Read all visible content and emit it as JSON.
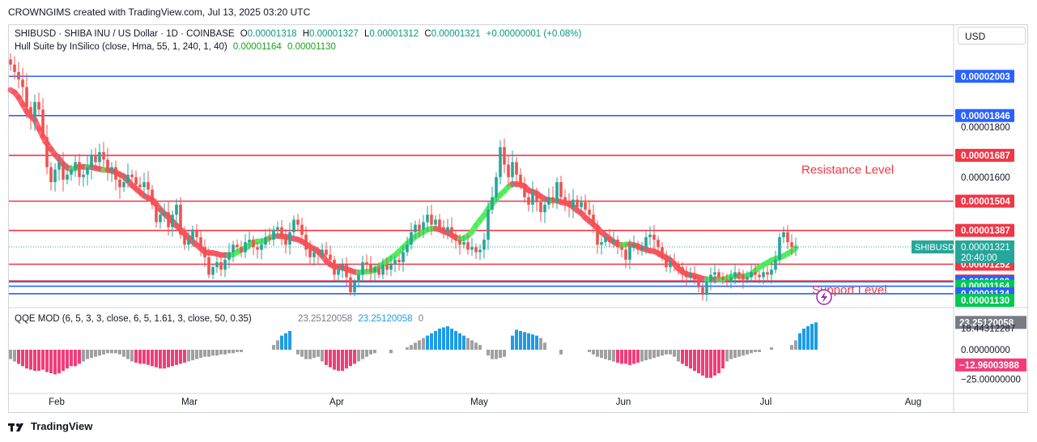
{
  "header": {
    "attribution": "CROWNGIMS created with TradingView.com, Jul 13, 2025 03:20 UTC",
    "currency_button": "USD"
  },
  "legend": {
    "symbol": "SHIBUSD · SHIBA INU / US Dollar · 1D · COINBASE",
    "o_label": "O",
    "o_value": "0.00001318",
    "h_label": "H",
    "h_value": "0.00001327",
    "l_label": "L",
    "l_value": "0.00001312",
    "c_label": "C",
    "c_value": "0.00001321",
    "change": "+0.00000001 (+0.08%)",
    "hull_title": "Hull Suite by InSilico (close, Hma, 55, 1, 240, 1, 40)",
    "hull_v1": "0.00001164",
    "hull_v2": "0.00001130",
    "qqe_title": "QQE MOD (6, 5, 3, 3, close, 6, 5, 1.61, 3, close, 50, 0.35)",
    "qqe_v1": "23.25120058",
    "qqe_v2": "23.25120058",
    "qqe_v3": "0"
  },
  "footer": {
    "brand": "TradingView"
  },
  "colors": {
    "up": "#26a69a",
    "down": "#ef5350",
    "resistance": "#f23645",
    "support": "#2962ff",
    "hull_bear": "#f7525f",
    "hull_bull": "#4cec5a",
    "qqe_pos": "#1e9be9",
    "qqe_neg": "#f23c7a",
    "qqe_neutral": "#a0a0a0"
  },
  "chart_data": {
    "type": "candlestick",
    "symbol": "SHIBUSD",
    "timeframe": "1D",
    "x_ticks": [
      "Feb",
      "Mar",
      "Apr",
      "May",
      "Jun",
      "Jul",
      "Aug"
    ],
    "y_axis_ticks": [
      "0.00001800",
      "0.00001600"
    ],
    "y_range": [
      1.085e-05,
      2.13e-05
    ],
    "price_lines": [
      {
        "value": 2.003e-05,
        "label": "0.00002003",
        "kind": "support"
      },
      {
        "value": 1.846e-05,
        "label": "0.00001846",
        "kind": "support"
      },
      {
        "value": 1.687e-05,
        "label": "0.00001687",
        "kind": "resistance"
      },
      {
        "value": 1.504e-05,
        "label": "0.00001504",
        "kind": "resistance"
      },
      {
        "value": 1.387e-05,
        "label": "0.00001387",
        "kind": "resistance"
      },
      {
        "value": 1.252e-05,
        "label": "0.00001252",
        "kind": "resistance"
      },
      {
        "value": 1.185e-05,
        "label": "0.00001185",
        "kind": "resistance"
      },
      {
        "value": 1.182e-05,
        "label": "0.00001182",
        "kind": "support"
      },
      {
        "value": 1.164e-05,
        "label": "0.00001164",
        "kind": "support"
      },
      {
        "value": 1.134e-05,
        "label": "0.00001134",
        "kind": "support"
      }
    ],
    "extra_scale_labels": [
      {
        "value": 1.321e-05,
        "label": "0.00001321",
        "sub": "20:40:00",
        "tag": "SHIBUSD",
        "kind": "last"
      },
      {
        "value": 1.13e-05,
        "label": "0.00001130",
        "kind": "hull"
      }
    ],
    "annotations": [
      {
        "text": "Resistance Level",
        "price": 1.63e-05
      },
      {
        "text": "Support Level",
        "price": 1.15e-05
      }
    ],
    "closes": [
      2.05e-05,
      2.02e-05,
      1.99e-05,
      1.96e-05,
      1.88e-05,
      1.84e-05,
      1.9e-05,
      1.87e-05,
      1.76e-05,
      1.64e-05,
      1.58e-05,
      1.63e-05,
      1.66e-05,
      1.59e-05,
      1.61e-05,
      1.63e-05,
      1.66e-05,
      1.6e-05,
      1.61e-05,
      1.64e-05,
      1.69e-05,
      1.66e-05,
      1.7e-05,
      1.67e-05,
      1.62e-05,
      1.64e-05,
      1.59e-05,
      1.56e-05,
      1.58e-05,
      1.61e-05,
      1.6e-05,
      1.57e-05,
      1.56e-05,
      1.58e-05,
      1.55e-05,
      1.49e-05,
      1.42e-05,
      1.45e-05,
      1.46e-05,
      1.4e-05,
      1.45e-05,
      1.49e-05,
      1.37e-05,
      1.33e-05,
      1.35e-05,
      1.39e-05,
      1.36e-05,
      1.32e-05,
      1.28e-05,
      1.21e-05,
      1.24e-05,
      1.26e-05,
      1.23e-05,
      1.27e-05,
      1.3e-05,
      1.33e-05,
      1.32e-05,
      1.3e-05,
      1.34e-05,
      1.35e-05,
      1.32e-05,
      1.31e-05,
      1.33e-05,
      1.36e-05,
      1.35e-05,
      1.39e-05,
      1.4e-05,
      1.36e-05,
      1.33e-05,
      1.38e-05,
      1.43e-05,
      1.41e-05,
      1.37e-05,
      1.31e-05,
      1.28e-05,
      1.3e-05,
      1.29e-05,
      1.31e-05,
      1.29e-05,
      1.27e-05,
      1.21e-05,
      1.23e-05,
      1.25e-05,
      1.2e-05,
      1.14e-05,
      1.18e-05,
      1.21e-05,
      1.26e-05,
      1.25e-05,
      1.22e-05,
      1.24e-05,
      1.21e-05,
      1.25e-05,
      1.23e-05,
      1.25e-05,
      1.27e-05,
      1.26e-05,
      1.3e-05,
      1.33e-05,
      1.38e-05,
      1.41e-05,
      1.39e-05,
      1.42e-05,
      1.45e-05,
      1.41e-05,
      1.43e-05,
      1.4e-05,
      1.38e-05,
      1.4e-05,
      1.37e-05,
      1.35e-05,
      1.33e-05,
      1.34e-05,
      1.31e-05,
      1.32e-05,
      1.3e-05,
      1.31e-05,
      1.35e-05,
      1.47e-05,
      1.52e-05,
      1.6e-05,
      1.72e-05,
      1.65e-05,
      1.6e-05,
      1.66e-05,
      1.61e-05,
      1.57e-05,
      1.52e-05,
      1.49e-05,
      1.54e-05,
      1.5e-05,
      1.46e-05,
      1.49e-05,
      1.52e-05,
      1.5e-05,
      1.58e-05,
      1.52e-05,
      1.5e-05,
      1.48e-05,
      1.51e-05,
      1.48e-05,
      1.5e-05,
      1.47e-05,
      1.45e-05,
      1.41e-05,
      1.33e-05,
      1.34e-05,
      1.36e-05,
      1.34e-05,
      1.35e-05,
      1.32e-05,
      1.31e-05,
      1.27e-05,
      1.32e-05,
      1.33e-05,
      1.31e-05,
      1.32e-05,
      1.36e-05,
      1.37e-05,
      1.35e-05,
      1.32e-05,
      1.28e-05,
      1.24e-05,
      1.26e-05,
      1.25e-05,
      1.24e-05,
      1.22e-05,
      1.2e-05,
      1.21e-05,
      1.19e-05,
      1.16e-05,
      1.13e-05,
      1.18e-05,
      1.21e-05,
      1.22e-05,
      1.2e-05,
      1.19e-05,
      1.18e-05,
      1.2e-05,
      1.22e-05,
      1.21e-05,
      1.19e-05,
      1.2e-05,
      1.22e-05,
      1.21e-05,
      1.2e-05,
      1.22e-05,
      1.21e-05,
      1.23e-05,
      1.27e-05,
      1.36e-05,
      1.38e-05,
      1.34e-05,
      1.32e-05,
      1.321e-05
    ],
    "qqe_histogram": [
      -8,
      -10,
      -12,
      -14,
      -16,
      -17,
      -18,
      -18,
      -17,
      -19,
      -20,
      -21,
      -20,
      -18,
      -16,
      -14,
      -14,
      -12,
      -10,
      -8,
      -7,
      -6,
      -5,
      -4,
      -3,
      -3,
      -3,
      -4,
      -6,
      -8,
      -10,
      -11,
      -12,
      -12,
      -13,
      -14,
      -15,
      -16,
      -16,
      -15,
      -14,
      -13,
      -12,
      -11,
      -10,
      -9,
      -8,
      -7,
      -6,
      -6,
      -5,
      -5,
      -4,
      -4,
      -3,
      -3,
      -2,
      -2,
      0,
      0,
      0,
      0,
      0,
      0,
      0,
      4,
      8,
      12,
      14,
      16,
      0,
      -4,
      -6,
      -8,
      -8,
      -7,
      -6,
      -10,
      -13,
      -15,
      -17,
      -18,
      -18,
      -16,
      -14,
      -12,
      -10,
      -8,
      -6,
      -4,
      -3,
      0,
      0,
      0,
      -3,
      0,
      0,
      0,
      2,
      4,
      6,
      8,
      10,
      12,
      14,
      16,
      18,
      19,
      20,
      18,
      16,
      14,
      12,
      10,
      8,
      6,
      4,
      0,
      -5,
      -8,
      -8,
      -7,
      -6,
      0,
      12,
      17,
      16,
      15,
      14,
      13,
      12,
      10,
      6,
      0,
      0,
      0,
      -4,
      0,
      0,
      0,
      0,
      0,
      0,
      -2,
      -4,
      -6,
      -7,
      -8,
      -9,
      -10,
      -11,
      -12,
      -12,
      -13,
      -12,
      -11,
      -10,
      -9,
      -8,
      -7,
      -6,
      -5,
      -4,
      -4,
      -6,
      -10,
      -12,
      -14,
      -16,
      -18,
      -20,
      -22,
      -24,
      -24,
      -22,
      -20,
      -16,
      -10,
      -8,
      -7,
      -6,
      -5,
      -4,
      -3,
      -2,
      -2,
      0,
      0,
      2,
      0,
      0,
      0,
      0,
      4,
      8,
      14,
      18,
      20,
      22,
      23.25
    ],
    "qqe_scale_labels": [
      {
        "value": 23.25120058,
        "label": "23.25120058",
        "tag": true
      },
      {
        "value": 18.44312287,
        "label": "18.44312287"
      },
      {
        "value": 0,
        "label": "0.00000000"
      },
      {
        "value": -12.96003988,
        "label": "−12.96003988",
        "tag": true
      },
      {
        "value": -25,
        "label": "−25.00000000"
      }
    ]
  }
}
